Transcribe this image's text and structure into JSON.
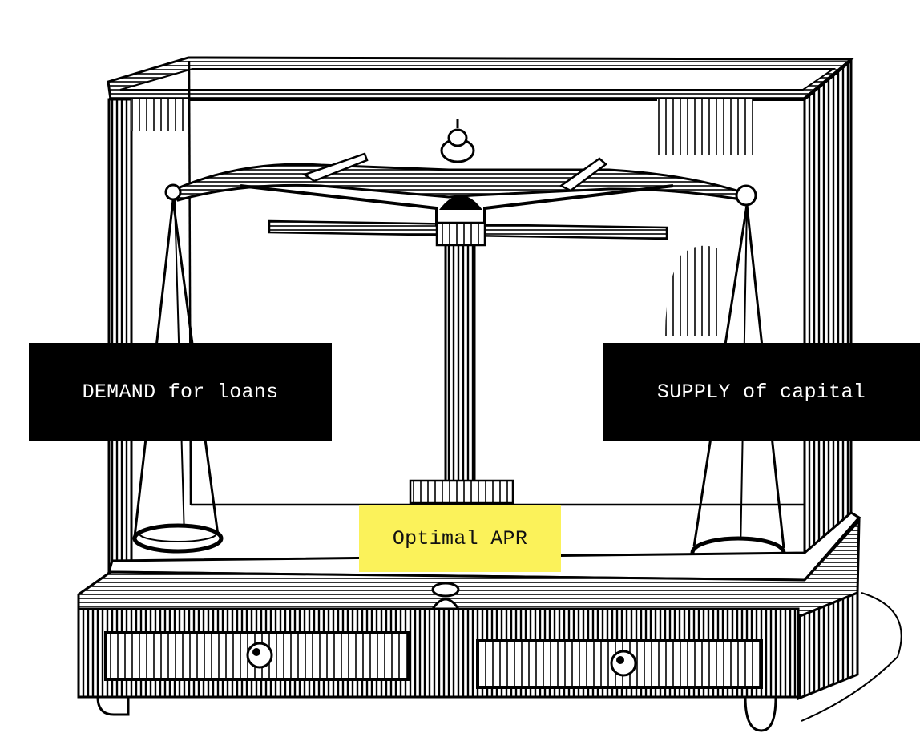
{
  "diagram": {
    "labels": {
      "demand": "DEMAND for loans",
      "supply": "SUPPLY of capital",
      "optimal": "Optimal APR"
    },
    "colors": {
      "ink": "#000000",
      "paper": "#ffffff",
      "highlight": "#fbf25a"
    }
  }
}
